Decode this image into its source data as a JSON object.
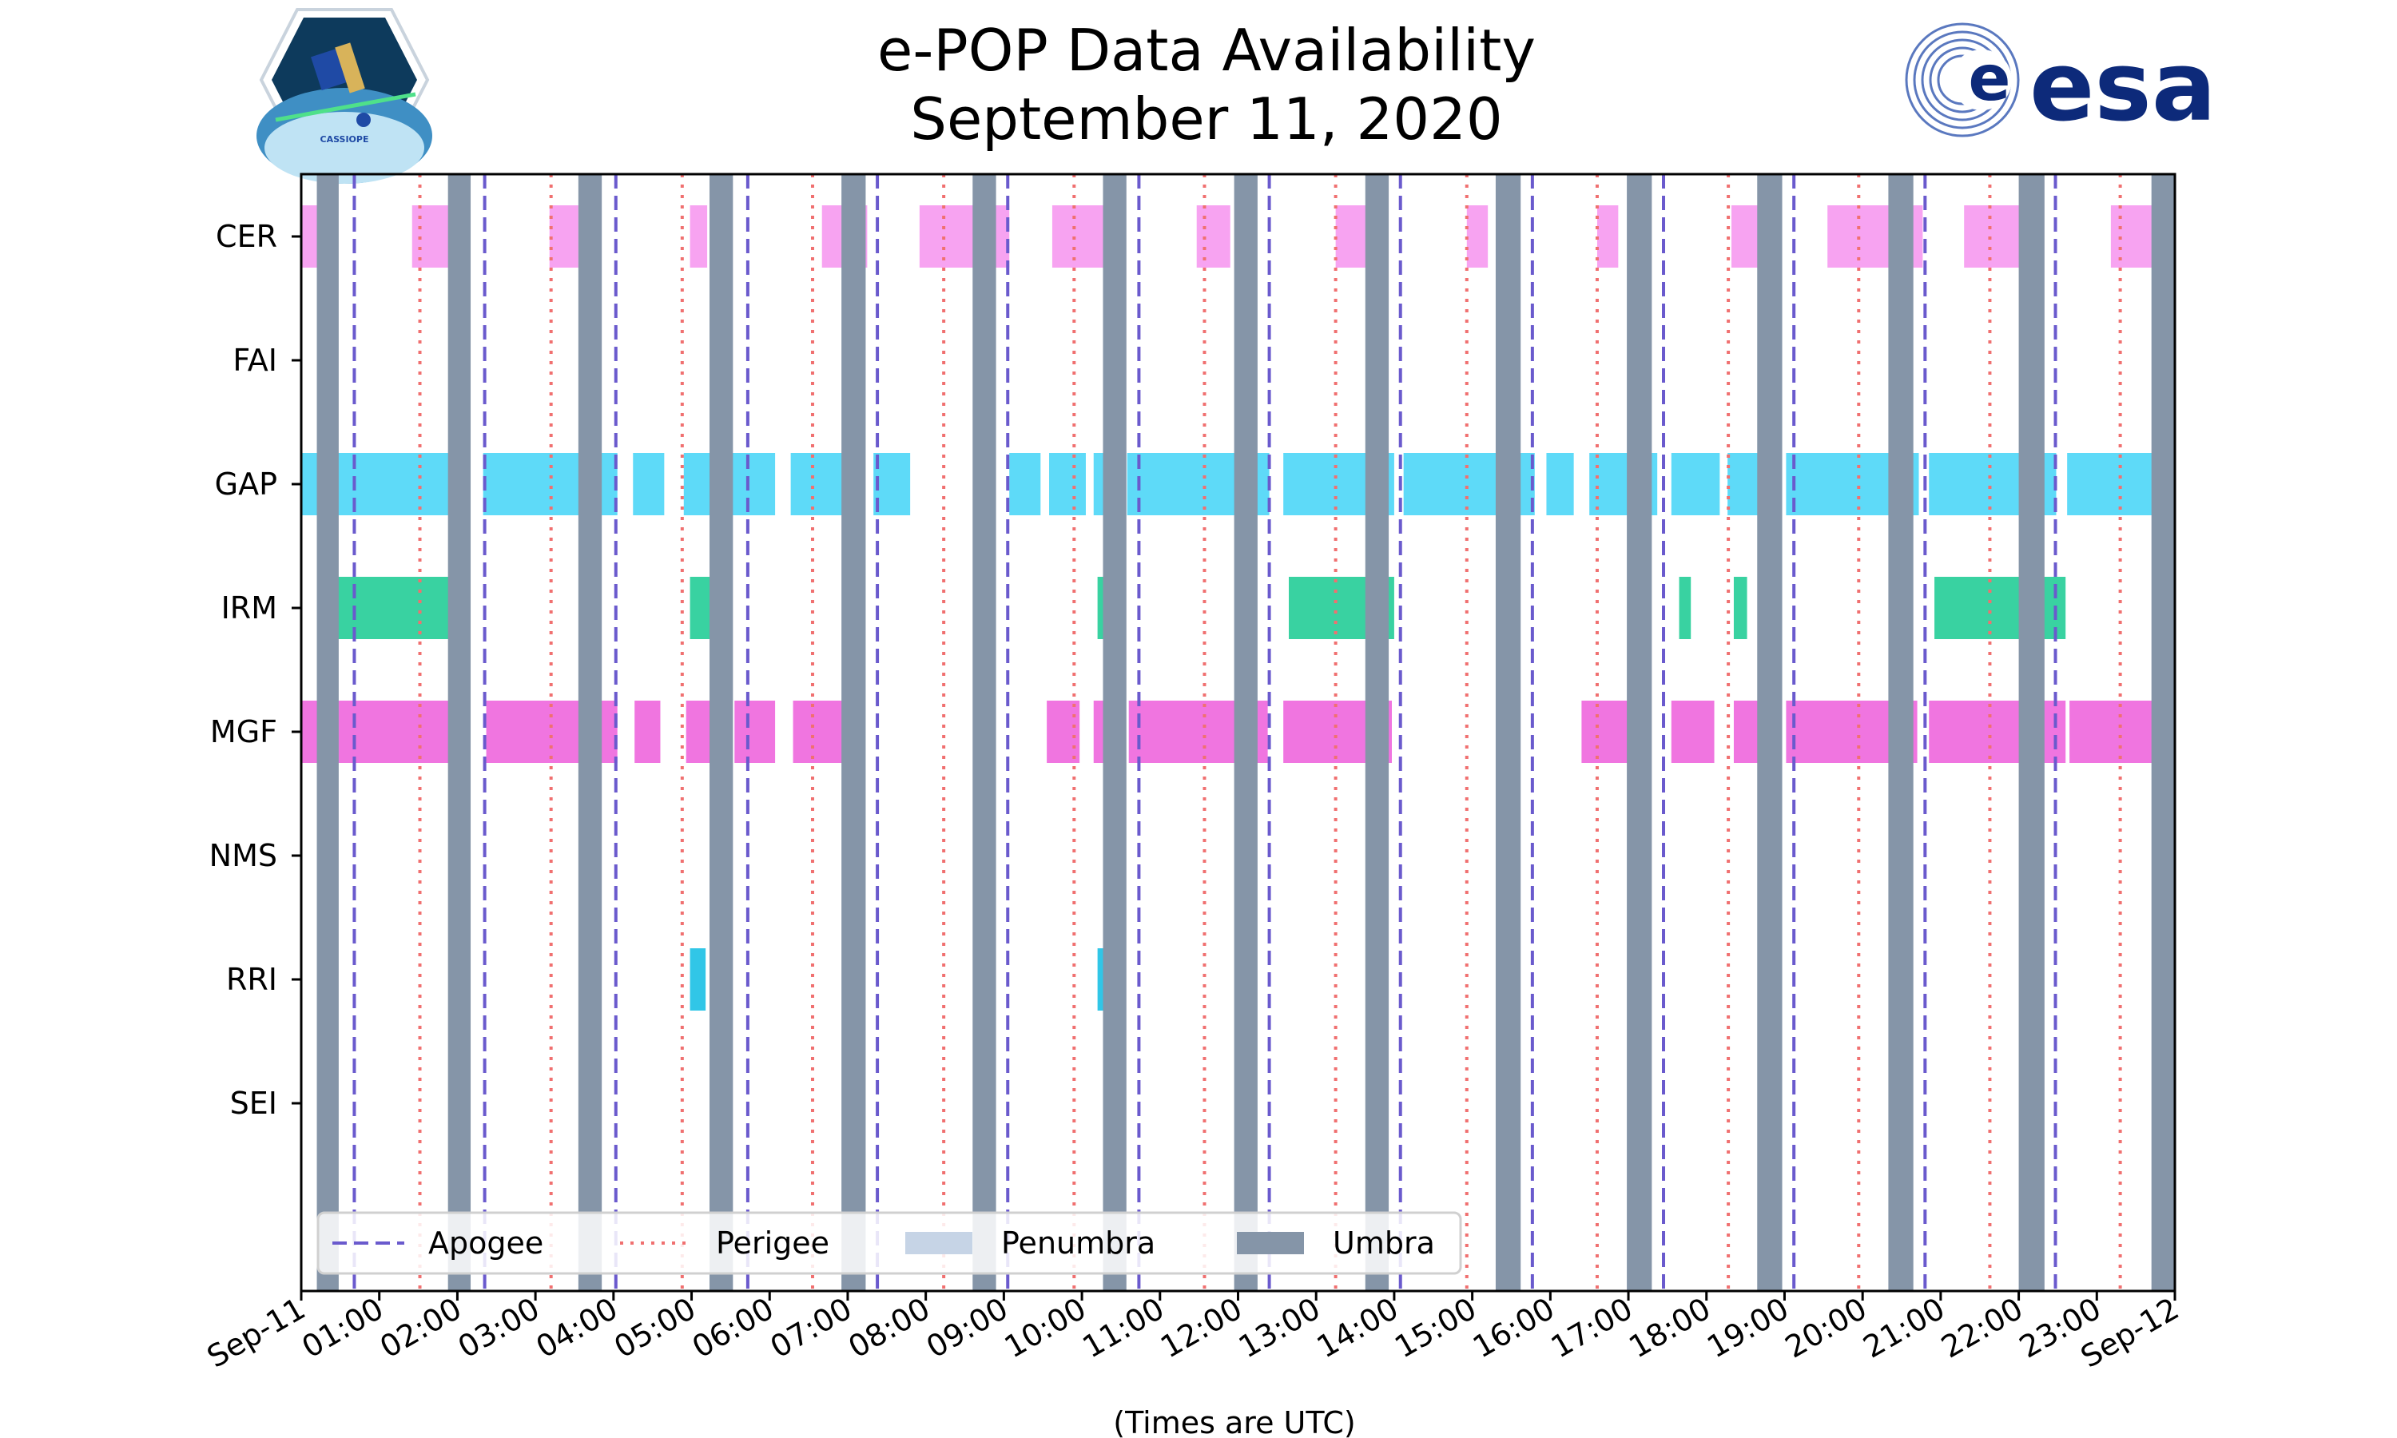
{
  "chart_data": {
    "type": "timeline",
    "title": "e-POP Data Availability",
    "subtitle": "September 11, 2020",
    "xlabel": "(Times are UTC)",
    "x_range_hours": [
      0,
      24
    ],
    "x_ticks": [
      {
        "h": 0,
        "label": "Sep-11"
      },
      {
        "h": 1,
        "label": "01:00"
      },
      {
        "h": 2,
        "label": "02:00"
      },
      {
        "h": 3,
        "label": "03:00"
      },
      {
        "h": 4,
        "label": "04:00"
      },
      {
        "h": 5,
        "label": "05:00"
      },
      {
        "h": 6,
        "label": "06:00"
      },
      {
        "h": 7,
        "label": "07:00"
      },
      {
        "h": 8,
        "label": "08:00"
      },
      {
        "h": 9,
        "label": "09:00"
      },
      {
        "h": 10,
        "label": "10:00"
      },
      {
        "h": 11,
        "label": "11:00"
      },
      {
        "h": 12,
        "label": "12:00"
      },
      {
        "h": 13,
        "label": "13:00"
      },
      {
        "h": 14,
        "label": "14:00"
      },
      {
        "h": 15,
        "label": "15:00"
      },
      {
        "h": 16,
        "label": "16:00"
      },
      {
        "h": 17,
        "label": "17:00"
      },
      {
        "h": 18,
        "label": "18:00"
      },
      {
        "h": 19,
        "label": "19:00"
      },
      {
        "h": 20,
        "label": "20:00"
      },
      {
        "h": 21,
        "label": "21:00"
      },
      {
        "h": 22,
        "label": "22:00"
      },
      {
        "h": 23,
        "label": "23:00"
      },
      {
        "h": 24,
        "label": "Sep-12"
      }
    ],
    "instruments": [
      {
        "name": "CER",
        "color": "#f79ef0",
        "intervals": [
          [
            0.0,
            0.25
          ],
          [
            1.42,
            1.95
          ],
          [
            3.18,
            3.55
          ],
          [
            4.98,
            5.2
          ],
          [
            6.67,
            7.25
          ],
          [
            7.92,
            9.07
          ],
          [
            9.62,
            10.52
          ],
          [
            11.47,
            11.9
          ],
          [
            13.25,
            13.68
          ],
          [
            14.93,
            15.2
          ],
          [
            16.6,
            16.87
          ],
          [
            18.32,
            18.87
          ],
          [
            19.55,
            20.77
          ],
          [
            21.3,
            22.05
          ],
          [
            23.18,
            23.8
          ]
        ]
      },
      {
        "name": "FAI",
        "color": "#9ad1f2",
        "intervals": []
      },
      {
        "name": "GAP",
        "color": "#55d8f8",
        "intervals": [
          [
            0.0,
            0.3
          ],
          [
            0.4,
            2.15
          ],
          [
            2.33,
            4.05
          ],
          [
            4.25,
            4.65
          ],
          [
            4.9,
            5.38
          ],
          [
            5.52,
            6.07
          ],
          [
            6.27,
            7.15
          ],
          [
            7.33,
            7.8
          ],
          [
            9.07,
            9.47
          ],
          [
            9.58,
            10.05
          ],
          [
            10.15,
            10.45
          ],
          [
            10.58,
            12.4
          ],
          [
            12.58,
            14.0
          ],
          [
            14.12,
            15.8
          ],
          [
            15.95,
            16.3
          ],
          [
            16.5,
            17.37
          ],
          [
            17.55,
            18.17
          ],
          [
            18.27,
            18.92
          ],
          [
            19.02,
            20.72
          ],
          [
            20.85,
            22.48
          ],
          [
            22.62,
            24.0
          ]
        ]
      },
      {
        "name": "IRM",
        "color": "#2ed09c",
        "intervals": [
          [
            0.45,
            2.15
          ],
          [
            4.98,
            5.38
          ],
          [
            10.2,
            10.35
          ],
          [
            12.65,
            14.0
          ],
          [
            17.65,
            17.8
          ],
          [
            18.35,
            18.52
          ],
          [
            20.92,
            22.6
          ]
        ]
      },
      {
        "name": "MGF",
        "color": "#ef6ede",
        "intervals": [
          [
            0.0,
            0.22
          ],
          [
            0.42,
            2.15
          ],
          [
            2.37,
            4.05
          ],
          [
            4.27,
            4.6
          ],
          [
            4.93,
            5.38
          ],
          [
            5.55,
            6.07
          ],
          [
            6.3,
            7.15
          ],
          [
            9.55,
            9.97
          ],
          [
            10.15,
            10.35
          ],
          [
            10.6,
            12.38
          ],
          [
            12.58,
            13.97
          ],
          [
            16.4,
            17.2
          ],
          [
            17.55,
            18.1
          ],
          [
            18.35,
            18.87
          ],
          [
            19.02,
            20.7
          ],
          [
            20.85,
            22.6
          ],
          [
            22.65,
            24.0
          ]
        ]
      },
      {
        "name": "NMS",
        "color": "#b39ddb",
        "intervals": []
      },
      {
        "name": "RRI",
        "color": "#26c3e6",
        "intervals": [
          [
            4.98,
            5.18
          ],
          [
            10.2,
            10.35
          ]
        ]
      },
      {
        "name": "SEI",
        "color": "#bdbdbd",
        "intervals": []
      }
    ],
    "umbra": [
      [
        0.2,
        0.48
      ],
      [
        1.88,
        2.17
      ],
      [
        3.55,
        3.85
      ],
      [
        5.23,
        5.53
      ],
      [
        6.92,
        7.23
      ],
      [
        8.6,
        8.9
      ],
      [
        10.27,
        10.57
      ],
      [
        11.95,
        12.25
      ],
      [
        13.63,
        13.93
      ],
      [
        15.3,
        15.62
      ],
      [
        16.98,
        17.3
      ],
      [
        18.65,
        18.97
      ],
      [
        20.33,
        20.65
      ],
      [
        22.0,
        22.33
      ],
      [
        23.7,
        24.0
      ]
    ],
    "penumbra": [],
    "apogee": [
      0.68,
      2.35,
      4.03,
      5.72,
      7.38,
      9.05,
      10.73,
      12.4,
      14.08,
      15.77,
      17.45,
      19.12,
      20.8,
      22.47
    ],
    "perigee": [
      1.52,
      3.2,
      4.88,
      6.55,
      8.23,
      9.9,
      11.57,
      13.25,
      14.93,
      16.6,
      18.28,
      19.95,
      21.63,
      23.3
    ],
    "legend": {
      "placement": "lower-left",
      "entries": [
        {
          "label": "Apogee",
          "style": "dashed",
          "color": "#6a5acd"
        },
        {
          "label": "Perigee",
          "style": "dotted",
          "color": "#f07070"
        },
        {
          "label": "Penumbra",
          "style": "patch",
          "color": "#c6d4e6"
        },
        {
          "label": "Umbra",
          "style": "patch",
          "color": "#8595a8"
        }
      ]
    },
    "colors": {
      "umbra": "#8595a8",
      "penumbra": "#c6d4e6",
      "apogee": "#6a5acd",
      "perigee": "#f07070"
    }
  },
  "logos": {
    "left": {
      "text": "CASSIOPE"
    },
    "right": {
      "text": "esa"
    }
  }
}
